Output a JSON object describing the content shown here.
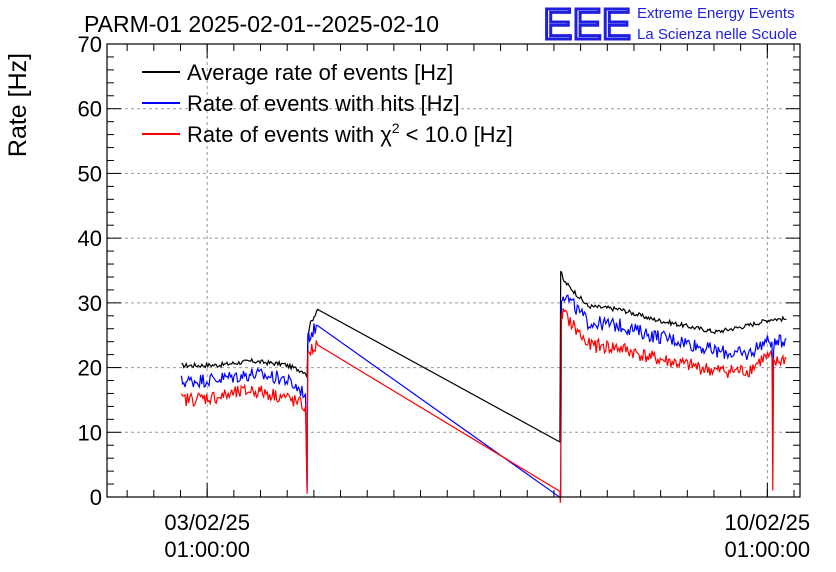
{
  "chart_data": {
    "type": "line",
    "title": "PARM-01 2025-02-01--2025-02-10",
    "ylabel": "Rate [Hz]",
    "xlabel": "",
    "ylim": [
      0,
      70
    ],
    "yticks": [
      0,
      10,
      20,
      30,
      40,
      50,
      60,
      70
    ],
    "xlim_days": [
      0.79,
      9.45
    ],
    "xticks": [
      {
        "x": 2.0417,
        "date": "03/02/25",
        "time": "01:00:00"
      },
      {
        "x": 9.0417,
        "date": "10/02/25",
        "time": "01:00:00"
      }
    ],
    "grid": true,
    "legend_position": "top-left",
    "x_unit": "days since 2025-02-01 00:00",
    "series": [
      {
        "name": "Average rate of events [Hz]",
        "color": "#000000",
        "x": [
          1.72,
          2.2,
          2.6,
          3.0,
          3.27,
          3.29,
          3.3,
          3.32,
          3.42,
          6.45,
          6.46,
          6.49,
          6.8,
          7.2,
          7.6,
          8.0,
          8.4,
          8.8,
          9.1,
          9.28
        ],
        "values": [
          20.3,
          20.4,
          21.0,
          20.5,
          19.3,
          18.5,
          25.0,
          26.5,
          29.0,
          8.5,
          35.0,
          33.5,
          29.5,
          29.0,
          27.5,
          26.5,
          25.5,
          26.5,
          27.5,
          27.5
        ]
      },
      {
        "name": "Rate of events with hits [Hz]",
        "color": "#0000ff",
        "x": [
          1.72,
          2.2,
          2.6,
          3.0,
          3.27,
          3.29,
          3.295,
          3.3,
          3.32,
          3.42,
          6.45,
          6.46,
          6.47,
          6.49,
          6.8,
          7.2,
          7.6,
          8.0,
          8.4,
          8.8,
          9.0,
          9.1,
          9.11,
          9.12,
          9.28
        ],
        "values": [
          17.8,
          18.3,
          19.0,
          18.3,
          16.0,
          1.0,
          16.0,
          24.0,
          25.0,
          26.5,
          0.0,
          0.5,
          31.0,
          31.5,
          27.0,
          26.5,
          25.0,
          24.0,
          22.5,
          22.0,
          24.0,
          24.0,
          14.0,
          23.5,
          24.5
        ]
      },
      {
        "name": "Rate of events with χ2 < 10.0 [Hz]",
        "color": "#ff0000",
        "x": [
          1.72,
          2.2,
          2.6,
          3.0,
          3.27,
          3.29,
          3.295,
          3.3,
          3.32,
          3.42,
          6.45,
          6.46,
          6.47,
          6.49,
          6.8,
          7.2,
          7.6,
          8.0,
          8.4,
          8.8,
          9.0,
          9.1,
          9.11,
          9.12,
          9.28
        ],
        "values": [
          15.0,
          15.5,
          16.5,
          15.5,
          14.0,
          0.5,
          14.0,
          21.5,
          22.5,
          23.5,
          0.0,
          0.3,
          27.5,
          28.5,
          23.5,
          23.0,
          21.5,
          20.5,
          19.5,
          19.5,
          21.5,
          21.5,
          1.0,
          20.5,
          21.5
        ]
      }
    ]
  },
  "legend": {
    "items": [
      {
        "text": "Average rate of events [Hz]"
      },
      {
        "text_before": "Rate of events with hits [Hz]"
      },
      {
        "text_before": "Rate of events with χ",
        "sup": "2",
        "text_after": " < 10.0 [Hz]"
      }
    ]
  },
  "logo": {
    "letters": "EEE",
    "line1": "Extreme Energy Events",
    "line2": "La Scienza nelle Scuole"
  }
}
